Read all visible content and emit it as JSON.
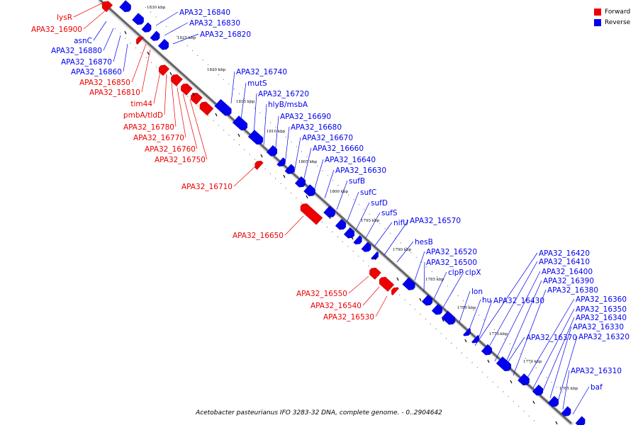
{
  "caption": "Acetobacter pasteurianus IFO 3283-32 DNA, complete genome. - 0..2904642",
  "legend": [
    {
      "label": "Forward",
      "color": "#ee0000"
    },
    {
      "label": "Reverse",
      "color": "#0000ee"
    }
  ],
  "colors": {
    "forward": "#ee0000",
    "reverse": "#0000ee",
    "axis": "#666666"
  },
  "ticks": [
    "1830 kbp",
    "1825 kbp",
    "1820 kbp",
    "1815 kbp",
    "1810 kbp",
    "1805 kbp",
    "1800 kbp",
    "1795 kbp",
    "1790 kbp",
    "1785 kbp",
    "1780 kbp",
    "1775 kbp",
    "1770 kbp",
    "1765 kbp"
  ],
  "forward_labels": [
    "lysR",
    "APA32_16900",
    "APA32_16850",
    "APA32_16810",
    "tim44",
    "pmbA/tldD",
    "APA32_16780",
    "APA32_16770",
    "APA32_16760",
    "APA32_16750",
    "APA32_16710",
    "APA32_16650",
    "APA32_16550",
    "APA32_16540",
    "APA32_16530"
  ],
  "reverse_left_labels": [
    "asnC",
    "APA32_16880",
    "APA32_16870",
    "APA32_16860"
  ],
  "reverse_right_labels": [
    "APA32_16840",
    "APA32_16830",
    "APA32_16820",
    "APA32_16740",
    "mutS",
    "APA32_16720",
    "hlyB/msbA",
    "APA32_16690",
    "APA32_16680",
    "APA32_16670",
    "APA32_16660",
    "APA32_16640",
    "APA32_16630",
    "sufB",
    "sufC",
    "sufD",
    "sufS",
    "nifU",
    "APA32_16570",
    "hesB",
    "APA32_16520",
    "APA32_16500",
    "clpP",
    "clpX",
    "lon",
    "hu",
    "APA32_16430",
    "APA32_16420",
    "APA32_16410",
    "APA32_16400",
    "APA32_16390",
    "APA32_16380",
    "APA32_16360",
    "APA32_16350",
    "APA32_16340",
    "APA32_16330",
    "APA32_16370",
    "APA32_16320",
    "APA32_16310",
    "baf"
  ]
}
